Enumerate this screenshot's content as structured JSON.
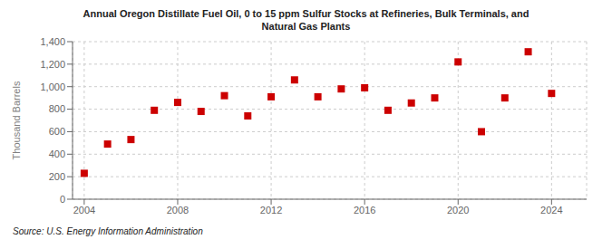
{
  "chart_data": {
    "type": "scatter",
    "title": "Annual Oregon Distillate Fuel Oil, 0 to 15 ppm Sulfur Stocks at Refineries, Bulk Terminals, and\nNatural Gas Plants",
    "ylabel": "Thousand Barrels",
    "source": "Source: U.S. Energy Information Administration",
    "x": [
      2004,
      2005,
      2006,
      2007,
      2008,
      2009,
      2010,
      2011,
      2012,
      2013,
      2014,
      2015,
      2016,
      2017,
      2018,
      2019,
      2020,
      2021,
      2022,
      2023,
      2024
    ],
    "values": [
      230,
      490,
      530,
      790,
      860,
      780,
      920,
      740,
      910,
      1060,
      910,
      980,
      990,
      790,
      855,
      900,
      1220,
      600,
      900,
      1310,
      940
    ],
    "color": "#cc0000",
    "marker": "square",
    "xlim": [
      2003.5,
      2025.5
    ],
    "xticks": [
      2004,
      2008,
      2012,
      2016,
      2020,
      2024
    ],
    "ylim": [
      0,
      1400
    ],
    "yticks": [
      0,
      200,
      400,
      600,
      800,
      {
        "value": 1000,
        "label": "1,000"
      },
      {
        "value": 1200,
        "label": "1,200"
      },
      {
        "value": 1400,
        "label": "1,400"
      }
    ],
    "grid": true
  }
}
